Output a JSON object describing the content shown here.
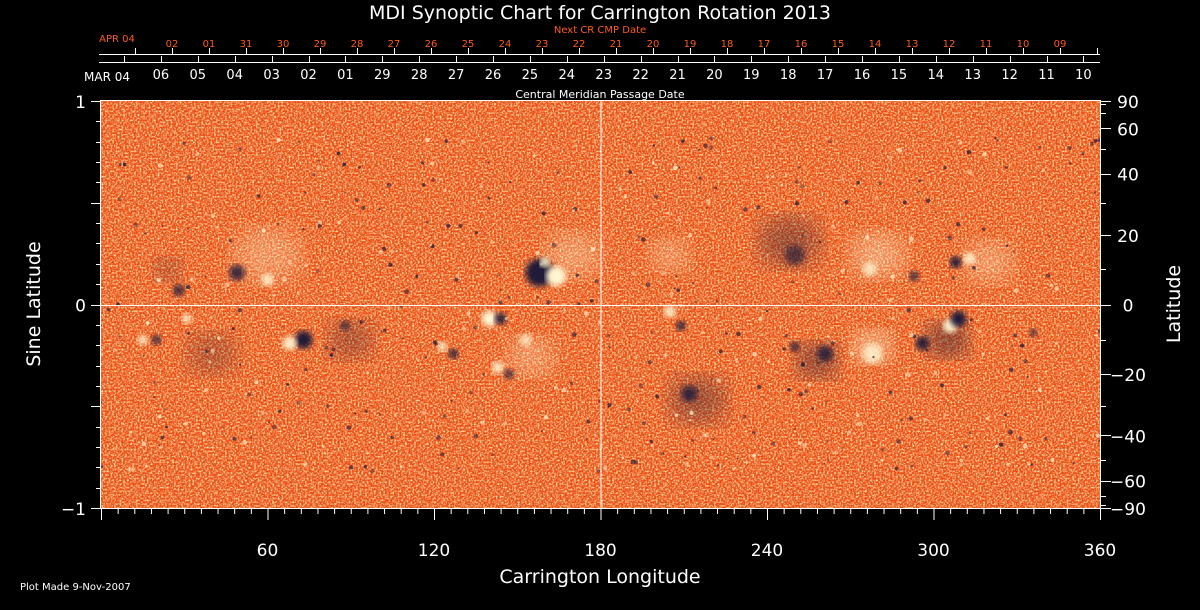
{
  "chart_data": {
    "type": "heatmap",
    "title": "MDI Synoptic Chart for Carrington Rotation 2013",
    "xlabel": "Carrington Longitude",
    "ylabel_left": "Sine Latitude",
    "ylabel_right": "Latitude",
    "xlim": [
      0,
      360
    ],
    "ylim": [
      -1,
      1
    ],
    "x_ticks": [
      60,
      120,
      180,
      240,
      300,
      360
    ],
    "y_left_ticks": [
      {
        "value": 1,
        "label": "1"
      },
      {
        "value": 0,
        "label": "0"
      },
      {
        "value": -1,
        "label": "−1"
      }
    ],
    "y_right_ticks": [
      90,
      60,
      40,
      20,
      0,
      -20,
      -40,
      -60,
      -90
    ],
    "reference_lines": {
      "x": 180,
      "y": 0
    },
    "cmp_axis": {
      "label": "Central Meridian Passage Date",
      "start_label": "MAR 04",
      "dates": [
        "06",
        "05",
        "04",
        "03",
        "02",
        "01",
        "29",
        "28",
        "27",
        "26",
        "25",
        "24",
        "23",
        "22",
        "21",
        "20",
        "19",
        "18",
        "17",
        "16",
        "15",
        "14",
        "13",
        "12",
        "11",
        "10"
      ]
    },
    "next_cmp_axis": {
      "label": "Next CR CMP Date",
      "start_label": "APR 04",
      "dates": [
        "02",
        "01",
        "31",
        "30",
        "29",
        "28",
        "27",
        "26",
        "25",
        "24",
        "23",
        "22",
        "21",
        "20",
        "19",
        "18",
        "17",
        "16",
        "15",
        "14",
        "13",
        "12",
        "11",
        "10",
        "09"
      ]
    },
    "colors": {
      "background_field": "#ee4810",
      "positive": "#fff6d2",
      "negative": "#181238",
      "next_cmp": "#ff5a1e",
      "text": "#ffffff"
    },
    "footer": "Plot Made  9-Nov-2007"
  }
}
